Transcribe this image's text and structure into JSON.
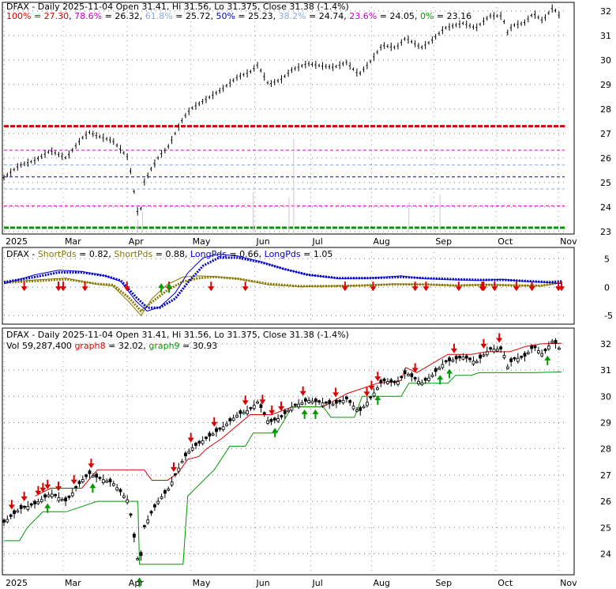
{
  "chart_data": [
    {
      "type": "candlestick",
      "panel": "price",
      "legend_parts": [
        {
          "text": "DFAX - Daily 2025-11-04 Open 31.41, Hi 31.56, Lo 31.375, Close 31.38 (-1.4%)",
          "color": "#000000"
        }
      ],
      "fib_legend": [
        {
          "text": "100% = 27.30",
          "color": "#dd0000"
        },
        {
          "text": ", ",
          "color": "#000000"
        },
        {
          "text": "78.6%",
          "color": "#cc00cc"
        },
        {
          "text": " = 26.32, ",
          "color": "#000000"
        },
        {
          "text": "61.8%",
          "color": "#88aadd"
        },
        {
          "text": " = 25.72, ",
          "color": "#000000"
        },
        {
          "text": "50%",
          "color": "#0000cc"
        },
        {
          "text": " = 25.23, ",
          "color": "#000000"
        },
        {
          "text": "38.2%",
          "color": "#88aadd"
        },
        {
          "text": " = 24.74, ",
          "color": "#000000"
        },
        {
          "text": "23.6%",
          "color": "#cc00cc"
        },
        {
          "text": " = 24.05, ",
          "color": "#000000"
        },
        {
          "text": "0%",
          "color": "#009900"
        },
        {
          "text": " = 23.16",
          "color": "#000000"
        }
      ],
      "fib_levels": [
        {
          "label": "100%",
          "value": 27.3,
          "color": "#dd0000"
        },
        {
          "label": "78.6%",
          "value": 26.32,
          "color": "#cc00cc"
        },
        {
          "label": "61.8%",
          "value": 25.72,
          "color": "#88aadd"
        },
        {
          "label": "50%",
          "value": 25.23,
          "color": "#0000cc"
        },
        {
          "label": "38.2%",
          "value": 24.74,
          "color": "#88aadd"
        },
        {
          "label": "23.6%",
          "value": 24.05,
          "color": "#cc00cc"
        },
        {
          "label": "0%",
          "value": 23.16,
          "color": "#009900"
        }
      ],
      "ylim": [
        22.9,
        32.35
      ],
      "y_ticks": [
        23,
        24,
        25,
        26,
        27,
        28,
        29,
        30,
        31,
        32
      ],
      "x_labels": [
        "2025",
        "Mar",
        "Apr",
        "May",
        "Jun",
        "Jul",
        "Aug",
        "Sep",
        "Oct",
        "Nov"
      ],
      "x_label_days": [
        0,
        38,
        79,
        120,
        161,
        197,
        236,
        276,
        316,
        356
      ],
      "x_range_days": [
        0,
        360
      ],
      "price_path": [
        [
          0,
          25.2
        ],
        [
          10,
          25.7
        ],
        [
          20,
          25.9
        ],
        [
          30,
          26.3
        ],
        [
          40,
          26.0
        ],
        [
          45,
          26.4
        ],
        [
          50,
          26.8
        ],
        [
          55,
          27.05
        ],
        [
          60,
          26.9
        ],
        [
          70,
          26.7
        ],
        [
          80,
          26.0
        ],
        [
          85,
          24.1
        ],
        [
          87,
          23.4
        ],
        [
          90,
          25.0
        ],
        [
          95,
          25.6
        ],
        [
          100,
          26.1
        ],
        [
          105,
          26.4
        ],
        [
          110,
          27.0
        ],
        [
          115,
          27.6
        ],
        [
          120,
          28.0
        ],
        [
          130,
          28.4
        ],
        [
          140,
          28.8
        ],
        [
          150,
          29.3
        ],
        [
          158,
          29.5
        ],
        [
          163,
          29.8
        ],
        [
          170,
          29.0
        ],
        [
          178,
          29.2
        ],
        [
          185,
          29.6
        ],
        [
          195,
          29.85
        ],
        [
          205,
          29.75
        ],
        [
          212,
          29.7
        ],
        [
          220,
          29.9
        ],
        [
          228,
          29.4
        ],
        [
          235,
          29.9
        ],
        [
          243,
          30.6
        ],
        [
          252,
          30.5
        ],
        [
          258,
          30.9
        ],
        [
          268,
          30.5
        ],
        [
          274,
          30.75
        ],
        [
          283,
          31.3
        ],
        [
          295,
          31.5
        ],
        [
          303,
          31.3
        ],
        [
          312,
          31.8
        ],
        [
          320,
          31.8
        ],
        [
          324,
          31.0
        ],
        [
          326,
          31.4
        ],
        [
          334,
          31.5
        ],
        [
          340,
          31.9
        ],
        [
          346,
          31.6
        ],
        [
          352,
          32.1
        ],
        [
          356,
          31.95
        ],
        [
          358,
          31.38
        ]
      ],
      "volume_spikes": [
        [
          86,
          23.5
        ],
        [
          89,
          23.8
        ],
        [
          160,
          24.6
        ],
        [
          183,
          24.4
        ],
        [
          186,
          26.8
        ],
        [
          260,
          24.2
        ],
        [
          280,
          24.5
        ]
      ]
    },
    {
      "type": "line",
      "panel": "oscillator",
      "legend_parts": [
        {
          "text": "DFAX - ",
          "color": "#000000"
        },
        {
          "text": "ShortPds",
          "color": "#887700"
        },
        {
          "text": " = 0.82, ",
          "color": "#000000"
        },
        {
          "text": "ShortPds",
          "color": "#887700"
        },
        {
          "text": " = 0.88, ",
          "color": "#000000"
        },
        {
          "text": "LongPds",
          "color": "#0000cc"
        },
        {
          "text": " = 0.66, ",
          "color": "#000000"
        },
        {
          "text": "LongPds",
          "color": "#0000cc"
        },
        {
          "text": " = 1.05",
          "color": "#000000"
        }
      ],
      "ylim": [
        -6.5,
        7
      ],
      "y_ticks": [
        5,
        0,
        -5
      ],
      "series": [
        {
          "name": "ShortPds",
          "color": "#887700",
          "values": [
            [
              0,
              0.9
            ],
            [
              20,
              1.3
            ],
            [
              40,
              1.6
            ],
            [
              60,
              0.5
            ],
            [
              70,
              0.2
            ],
            [
              80,
              -2.5
            ],
            [
              88,
              -5.0
            ],
            [
              95,
              -2.0
            ],
            [
              105,
              0.5
            ],
            [
              115,
              1.8
            ],
            [
              125,
              2.0
            ],
            [
              135,
              1.9
            ],
            [
              150,
              1.5
            ],
            [
              170,
              0.4
            ],
            [
              190,
              0.1
            ],
            [
              210,
              0.2
            ],
            [
              230,
              0.3
            ],
            [
              250,
              0.6
            ],
            [
              270,
              0.5
            ],
            [
              290,
              0.3
            ],
            [
              310,
              0.5
            ],
            [
              330,
              0.3
            ],
            [
              345,
              0.2
            ],
            [
              358,
              0.82
            ]
          ]
        },
        {
          "name": "ShortPds",
          "color": "#887700",
          "values": [
            [
              0,
              0.8
            ],
            [
              20,
              1.1
            ],
            [
              40,
              1.4
            ],
            [
              60,
              0.6
            ],
            [
              70,
              0.4
            ],
            [
              80,
              -1.8
            ],
            [
              88,
              -4.2
            ],
            [
              95,
              -2.6
            ],
            [
              105,
              -0.5
            ],
            [
              115,
              1.0
            ],
            [
              125,
              1.6
            ],
            [
              135,
              1.8
            ],
            [
              150,
              1.5
            ],
            [
              170,
              0.6
            ],
            [
              190,
              0.2
            ],
            [
              210,
              0.2
            ],
            [
              230,
              0.3
            ],
            [
              250,
              0.5
            ],
            [
              270,
              0.5
            ],
            [
              290,
              0.3
            ],
            [
              310,
              0.4
            ],
            [
              330,
              0.3
            ],
            [
              345,
              0.3
            ],
            [
              358,
              0.88
            ]
          ]
        },
        {
          "name": "LongPds",
          "color": "#0000cc",
          "values": [
            [
              0,
              0.6
            ],
            [
              20,
              2.2
            ],
            [
              35,
              3.0
            ],
            [
              50,
              2.8
            ],
            [
              65,
              2.0
            ],
            [
              75,
              1.0
            ],
            [
              85,
              -2.5
            ],
            [
              92,
              -4.2
            ],
            [
              100,
              -3.5
            ],
            [
              110,
              -1.0
            ],
            [
              118,
              2.5
            ],
            [
              128,
              5.2
            ],
            [
              138,
              5.8
            ],
            [
              150,
              5.5
            ],
            [
              165,
              4.5
            ],
            [
              180,
              3.2
            ],
            [
              195,
              2.2
            ],
            [
              215,
              1.5
            ],
            [
              235,
              1.6
            ],
            [
              255,
              2.0
            ],
            [
              270,
              1.5
            ],
            [
              290,
              1.3
            ],
            [
              305,
              1.2
            ],
            [
              320,
              1.4
            ],
            [
              335,
              1.0
            ],
            [
              350,
              0.8
            ],
            [
              358,
              0.66
            ]
          ]
        },
        {
          "name": "LongPds",
          "color": "#0000cc",
          "values": [
            [
              0,
              0.9
            ],
            [
              20,
              1.8
            ],
            [
              35,
              2.6
            ],
            [
              50,
              2.6
            ],
            [
              65,
              2.0
            ],
            [
              75,
              1.2
            ],
            [
              85,
              -1.8
            ],
            [
              92,
              -3.6
            ],
            [
              100,
              -3.6
            ],
            [
              110,
              -2.0
            ],
            [
              118,
              0.8
            ],
            [
              128,
              3.8
            ],
            [
              138,
              5.2
            ],
            [
              150,
              5.2
            ],
            [
              165,
              4.4
            ],
            [
              180,
              3.2
            ],
            [
              195,
              2.2
            ],
            [
              215,
              1.6
            ],
            [
              235,
              1.6
            ],
            [
              255,
              1.8
            ],
            [
              270,
              1.6
            ],
            [
              290,
              1.4
            ],
            [
              305,
              1.3
            ],
            [
              320,
              1.3
            ],
            [
              335,
              1.1
            ],
            [
              350,
              0.9
            ],
            [
              358,
              1.05
            ]
          ]
        }
      ],
      "down_arrows_days": [
        13,
        35,
        38,
        52,
        79,
        106,
        133,
        155,
        219,
        237,
        264,
        271,
        292,
        307,
        308,
        315,
        329,
        339,
        356,
        358
      ],
      "up_arrows_days": [
        101,
        106
      ]
    },
    {
      "type": "candlestick",
      "panel": "price-with-stops",
      "legend_parts": [
        {
          "text": "DFAX - Daily 2025-11-04 Open 31.41, Hi 31.56, Lo 31.375, Close 31.38 (-1.4%)",
          "color": "#000000"
        }
      ],
      "legend2_parts": [
        {
          "text": "Vol 59,287,400 ",
          "color": "#000000"
        },
        {
          "text": "graph8",
          "color": "#dd0000"
        },
        {
          "text": " = 32.02, ",
          "color": "#000000"
        },
        {
          "text": "graph9",
          "color": "#009900"
        },
        {
          "text": " = 30.93",
          "color": "#000000"
        }
      ],
      "ylim": [
        23.2,
        32.6
      ],
      "y_ticks": [
        24,
        25,
        26,
        27,
        28,
        29,
        30,
        31,
        32
      ],
      "x_labels": [
        "2025",
        "Mar",
        "Apr",
        "May",
        "Jun",
        "Jul",
        "Aug",
        "Sep",
        "Oct",
        "Nov"
      ],
      "series": [
        {
          "name": "graph8",
          "color": "#dd0000",
          "values": [
            [
              20,
              26.2
            ],
            [
              30,
              26.5
            ],
            [
              50,
              26.5
            ],
            [
              60,
              27.2
            ],
            [
              90,
              27.2
            ],
            [
              95,
              26.8
            ],
            [
              105,
              26.8
            ],
            [
              112,
              27.1
            ],
            [
              118,
              27.6
            ],
            [
              125,
              27.7
            ],
            [
              130,
              28.0
            ],
            [
              140,
              28.4
            ],
            [
              158,
              29.3
            ],
            [
              172,
              29.3
            ],
            [
              185,
              29.6
            ],
            [
              205,
              29.6
            ],
            [
              220,
              30.1
            ],
            [
              240,
              30.5
            ],
            [
              255,
              30.6
            ],
            [
              258,
              31.1
            ],
            [
              265,
              30.9
            ],
            [
              285,
              31.6
            ],
            [
              300,
              31.6
            ],
            [
              310,
              31.7
            ],
            [
              325,
              31.7
            ],
            [
              335,
              31.9
            ],
            [
              345,
              32.0
            ],
            [
              358,
              32.02
            ]
          ]
        },
        {
          "name": "graph9",
          "color": "#009900",
          "values": [
            [
              0,
              24.5
            ],
            [
              10,
              24.5
            ],
            [
              15,
              25.0
            ],
            [
              25,
              25.6
            ],
            [
              40,
              25.6
            ],
            [
              50,
              25.8
            ],
            [
              60,
              26.0
            ],
            [
              75,
              26.0
            ],
            [
              86,
              26.0
            ],
            [
              87,
              23.6
            ],
            [
              115,
              23.6
            ],
            [
              118,
              26.2
            ],
            [
              135,
              27.2
            ],
            [
              145,
              28.1
            ],
            [
              155,
              28.1
            ],
            [
              160,
              28.6
            ],
            [
              175,
              28.6
            ],
            [
              185,
              29.6
            ],
            [
              205,
              29.6
            ],
            [
              210,
              29.2
            ],
            [
              225,
              29.2
            ],
            [
              230,
              30.0
            ],
            [
              255,
              30.0
            ],
            [
              260,
              30.5
            ],
            [
              285,
              30.5
            ],
            [
              290,
              30.8
            ],
            [
              300,
              30.8
            ],
            [
              305,
              30.9
            ],
            [
              340,
              30.9
            ],
            [
              358,
              30.93
            ]
          ]
        }
      ],
      "down_arrows_days": [
        5,
        13,
        22,
        25,
        28,
        35,
        45,
        56,
        109,
        120,
        135,
        155,
        166,
        172,
        178,
        192,
        213,
        233,
        236,
        240,
        264,
        289,
        308,
        318
      ],
      "up_arrows_days": [
        28,
        57,
        87,
        174,
        193,
        200,
        240,
        280,
        286,
        349
      ]
    }
  ]
}
